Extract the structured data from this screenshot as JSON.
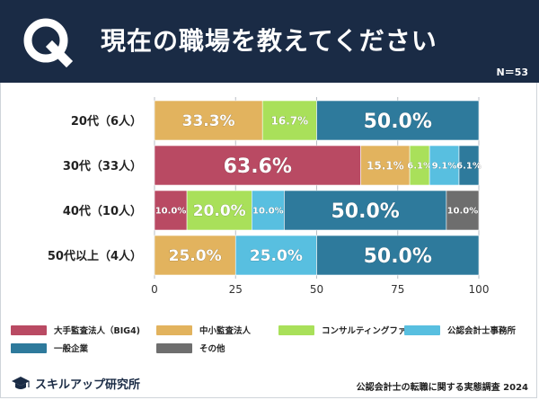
{
  "header": {
    "badge": "Q",
    "title": "現在の職場を教えてください",
    "n_label": "N＝53"
  },
  "colors": {
    "header_bg": "#1a2b45",
    "big4": "#b94a63",
    "mid_small": "#e2b35e",
    "consulting": "#a9e05a",
    "cpa_office": "#58bfe0",
    "general": "#2e7a9c",
    "other": "#6e6e6e"
  },
  "chart_data": {
    "type": "bar",
    "orientation": "horizontal",
    "stacked": true,
    "categories": [
      "20代（6人）",
      "30代（33人）",
      "40代（10人）",
      "50代以上（4人）"
    ],
    "series": [
      {
        "name": "大手監査法人（BIG4)",
        "color": "#b94a63",
        "values": [
          0,
          63.6,
          10.0,
          0
        ]
      },
      {
        "name": "中小監査法人",
        "color": "#e2b35e",
        "values": [
          33.3,
          15.1,
          0,
          25.0
        ]
      },
      {
        "name": "コンサルティングファーム",
        "color": "#a9e05a",
        "values": [
          16.7,
          6.1,
          20.0,
          0
        ]
      },
      {
        "name": "公認会計士事務所",
        "color": "#58bfe0",
        "values": [
          0,
          9.1,
          10.0,
          25.0
        ]
      },
      {
        "name": "一般企業",
        "color": "#2e7a9c",
        "values": [
          50.0,
          6.1,
          50.0,
          50.0
        ]
      },
      {
        "name": "その他",
        "color": "#6e6e6e",
        "values": [
          0,
          0,
          10.0,
          0
        ]
      }
    ],
    "labels": [
      [
        "",
        "33.3%",
        "16.7%",
        "",
        "50.0%",
        ""
      ],
      [
        "63.6%",
        "15.1%",
        "6.1%",
        "9.1%",
        "6.1%",
        ""
      ],
      [
        "10.0%",
        "",
        "20.0%",
        "10.0%",
        "50.0%",
        "10.0%"
      ],
      [
        "",
        "25.0%",
        "",
        "25.0%",
        "50.0%",
        ""
      ]
    ],
    "x_ticks": [
      "0",
      "25",
      "50",
      "75",
      "100"
    ],
    "xlim": [
      0,
      100
    ],
    "grid": true,
    "legend_position": "bottom"
  },
  "footer": {
    "logo_text": "スキルアップ研究所",
    "note": "公認会計士の転職に関する実態調査 2024"
  }
}
